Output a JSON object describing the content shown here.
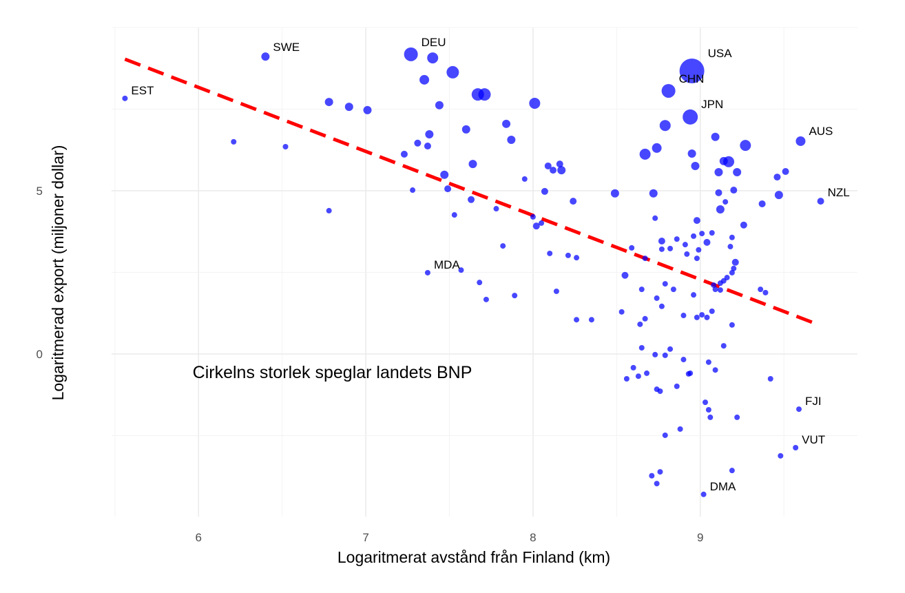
{
  "chart_data": {
    "type": "scatter",
    "title": "",
    "xlabel": "Logaritmerat avstånd från Finland (km)",
    "ylabel": "Logaritmerad export (miljoner dollar)",
    "xlim": [
      5.48,
      9.94
    ],
    "ylim": [
      -4.98,
      10.0
    ],
    "x_ticks": [
      6,
      7,
      8,
      9
    ],
    "y_ticks": [
      0,
      5
    ],
    "grid": true,
    "point_color": "#0000ff",
    "trend_color": "#ff0000",
    "annotation": {
      "text": "Cirkelns storlek speglar landets BNP",
      "x": 6.8,
      "y": -0.55
    },
    "trend_line": {
      "x": [
        5.56,
        9.69
      ],
      "y": [
        9.03,
        0.93
      ]
    },
    "points_format": [
      "x",
      "y",
      "gdp_size_index",
      "label"
    ],
    "points": [
      [
        5.56,
        7.83,
        4,
        "EST"
      ],
      [
        6.4,
        9.11,
        6,
        "SWE"
      ],
      [
        7.27,
        9.18,
        10,
        "DEU"
      ],
      [
        7.4,
        9.07,
        8,
        ""
      ],
      [
        7.52,
        8.63,
        9,
        ""
      ],
      [
        7.35,
        8.4,
        7,
        ""
      ],
      [
        7.67,
        7.95,
        9,
        ""
      ],
      [
        7.71,
        7.95,
        9,
        ""
      ],
      [
        7.44,
        7.62,
        6,
        ""
      ],
      [
        8.01,
        7.68,
        8,
        ""
      ],
      [
        8.95,
        8.67,
        18,
        "USA"
      ],
      [
        8.81,
        8.06,
        10,
        "CHN"
      ],
      [
        8.94,
        7.26,
        11,
        "JPN"
      ],
      [
        8.79,
        7.0,
        8,
        ""
      ],
      [
        6.78,
        7.72,
        6,
        ""
      ],
      [
        6.9,
        7.57,
        6,
        ""
      ],
      [
        7.01,
        7.47,
        6,
        ""
      ],
      [
        6.21,
        6.5,
        4,
        ""
      ],
      [
        6.52,
        6.35,
        4,
        ""
      ],
      [
        7.6,
        6.88,
        6,
        ""
      ],
      [
        7.84,
        7.05,
        6,
        ""
      ],
      [
        7.38,
        6.73,
        6,
        ""
      ],
      [
        7.31,
        6.46,
        5,
        ""
      ],
      [
        7.37,
        6.37,
        5,
        ""
      ],
      [
        7.23,
        6.12,
        5,
        ""
      ],
      [
        7.87,
        6.56,
        6,
        ""
      ],
      [
        9.6,
        6.52,
        7,
        "AUS"
      ],
      [
        9.27,
        6.39,
        8,
        ""
      ],
      [
        9.09,
        6.65,
        6,
        ""
      ],
      [
        8.74,
        6.31,
        7,
        ""
      ],
      [
        8.67,
        6.12,
        8,
        ""
      ],
      [
        8.95,
        6.14,
        6,
        ""
      ],
      [
        9.14,
        5.91,
        6,
        ""
      ],
      [
        9.17,
        5.89,
        8,
        ""
      ],
      [
        8.97,
        5.76,
        6,
        ""
      ],
      [
        7.64,
        5.82,
        6,
        ""
      ],
      [
        8.09,
        5.76,
        5,
        ""
      ],
      [
        8.16,
        5.82,
        5,
        ""
      ],
      [
        8.12,
        5.63,
        5,
        ""
      ],
      [
        8.17,
        5.63,
        6,
        ""
      ],
      [
        9.11,
        5.57,
        6,
        ""
      ],
      [
        9.22,
        5.57,
        6,
        ""
      ],
      [
        9.51,
        5.59,
        5,
        ""
      ],
      [
        9.46,
        5.42,
        5,
        ""
      ],
      [
        7.47,
        5.49,
        6,
        ""
      ],
      [
        7.95,
        5.36,
        4,
        ""
      ],
      [
        7.28,
        5.02,
        4,
        ""
      ],
      [
        7.49,
        5.06,
        5,
        ""
      ],
      [
        8.07,
        4.98,
        5,
        ""
      ],
      [
        8.49,
        4.92,
        6,
        ""
      ],
      [
        8.72,
        4.92,
        6,
        ""
      ],
      [
        9.11,
        4.94,
        5,
        ""
      ],
      [
        9.2,
        5.02,
        5,
        ""
      ],
      [
        9.47,
        4.87,
        6,
        ""
      ],
      [
        9.72,
        4.68,
        5,
        "NZL"
      ],
      [
        7.63,
        4.73,
        5,
        ""
      ],
      [
        8.24,
        4.68,
        5,
        ""
      ],
      [
        9.15,
        4.66,
        4,
        ""
      ],
      [
        7.78,
        4.45,
        4,
        ""
      ],
      [
        9.12,
        4.43,
        6,
        ""
      ],
      [
        9.37,
        4.6,
        5,
        ""
      ],
      [
        6.78,
        4.39,
        4,
        ""
      ],
      [
        7.53,
        4.26,
        4,
        ""
      ],
      [
        8.0,
        4.2,
        4,
        ""
      ],
      [
        8.73,
        4.16,
        4,
        ""
      ],
      [
        8.98,
        4.09,
        5,
        ""
      ],
      [
        8.05,
        4.01,
        4,
        ""
      ],
      [
        8.02,
        3.92,
        5,
        ""
      ],
      [
        9.26,
        3.95,
        5,
        ""
      ],
      [
        9.01,
        3.69,
        4,
        ""
      ],
      [
        9.07,
        3.71,
        4,
        ""
      ],
      [
        9.19,
        3.57,
        4,
        ""
      ],
      [
        8.86,
        3.52,
        4,
        ""
      ],
      [
        8.77,
        3.46,
        5,
        ""
      ],
      [
        8.96,
        3.61,
        4,
        ""
      ],
      [
        9.04,
        3.42,
        5,
        ""
      ],
      [
        8.91,
        3.35,
        4,
        ""
      ],
      [
        9.18,
        3.29,
        4,
        ""
      ],
      [
        8.59,
        3.25,
        4,
        ""
      ],
      [
        7.82,
        3.31,
        4,
        ""
      ],
      [
        8.77,
        3.21,
        4,
        ""
      ],
      [
        8.82,
        3.23,
        4,
        ""
      ],
      [
        8.99,
        3.19,
        4,
        ""
      ],
      [
        8.1,
        3.08,
        4,
        ""
      ],
      [
        8.92,
        3.06,
        4,
        ""
      ],
      [
        8.21,
        3.02,
        4,
        ""
      ],
      [
        8.26,
        2.95,
        4,
        ""
      ],
      [
        8.67,
        2.93,
        4,
        ""
      ],
      [
        8.98,
        2.93,
        4,
        ""
      ],
      [
        9.21,
        2.81,
        5,
        ""
      ],
      [
        9.2,
        2.62,
        4,
        ""
      ],
      [
        9.19,
        2.49,
        4,
        ""
      ],
      [
        7.37,
        2.49,
        4,
        "MDA"
      ],
      [
        7.57,
        2.57,
        4,
        ""
      ],
      [
        8.55,
        2.41,
        5,
        ""
      ],
      [
        9.16,
        2.34,
        4,
        ""
      ],
      [
        9.14,
        2.24,
        4,
        ""
      ],
      [
        9.12,
        2.17,
        4,
        ""
      ],
      [
        9.08,
        2.11,
        4,
        ""
      ],
      [
        8.79,
        2.15,
        4,
        ""
      ],
      [
        7.68,
        2.19,
        4,
        ""
      ],
      [
        8.84,
        1.98,
        4,
        ""
      ],
      [
        8.65,
        1.98,
        4,
        ""
      ],
      [
        9.09,
        1.98,
        4,
        ""
      ],
      [
        9.12,
        1.96,
        4,
        ""
      ],
      [
        9.36,
        1.98,
        4,
        ""
      ],
      [
        9.39,
        1.88,
        4,
        ""
      ],
      [
        8.14,
        1.92,
        4,
        ""
      ],
      [
        7.89,
        1.79,
        4,
        ""
      ],
      [
        8.96,
        1.81,
        4,
        ""
      ],
      [
        7.72,
        1.67,
        4,
        ""
      ],
      [
        8.74,
        1.71,
        4,
        ""
      ],
      [
        8.77,
        1.46,
        4,
        ""
      ],
      [
        8.53,
        1.29,
        4,
        ""
      ],
      [
        9.07,
        1.31,
        4,
        ""
      ],
      [
        8.9,
        1.18,
        4,
        ""
      ],
      [
        8.98,
        1.12,
        4,
        ""
      ],
      [
        9.01,
        1.2,
        4,
        ""
      ],
      [
        9.04,
        1.12,
        4,
        ""
      ],
      [
        8.67,
        1.08,
        4,
        ""
      ],
      [
        8.26,
        1.05,
        4,
        ""
      ],
      [
        8.35,
        1.05,
        4,
        ""
      ],
      [
        8.64,
        0.91,
        4,
        ""
      ],
      [
        9.19,
        0.89,
        4,
        ""
      ],
      [
        9.14,
        0.25,
        4,
        ""
      ],
      [
        8.65,
        0.19,
        4,
        ""
      ],
      [
        8.73,
        -0.02,
        4,
        ""
      ],
      [
        8.79,
        -0.04,
        4,
        ""
      ],
      [
        8.82,
        0.15,
        4,
        ""
      ],
      [
        8.9,
        -0.17,
        4,
        ""
      ],
      [
        9.05,
        -0.25,
        4,
        ""
      ],
      [
        8.6,
        -0.42,
        4,
        ""
      ],
      [
        9.09,
        -0.49,
        4,
        ""
      ],
      [
        8.68,
        -0.59,
        4,
        ""
      ],
      [
        8.93,
        -0.61,
        4,
        ""
      ],
      [
        8.94,
        -0.59,
        4,
        ""
      ],
      [
        8.63,
        -0.68,
        4,
        ""
      ],
      [
        8.56,
        -0.76,
        4,
        ""
      ],
      [
        9.42,
        -0.76,
        4,
        ""
      ],
      [
        8.74,
        -1.08,
        4,
        ""
      ],
      [
        8.76,
        -1.14,
        4,
        ""
      ],
      [
        8.86,
        -0.99,
        4,
        ""
      ],
      [
        9.03,
        -1.48,
        4,
        ""
      ],
      [
        9.05,
        -1.71,
        4,
        ""
      ],
      [
        9.06,
        -1.94,
        4,
        ""
      ],
      [
        9.22,
        -1.94,
        4,
        ""
      ],
      [
        9.59,
        -1.69,
        4,
        "FJI"
      ],
      [
        8.88,
        -2.3,
        4,
        ""
      ],
      [
        8.79,
        -2.49,
        4,
        ""
      ],
      [
        9.57,
        -2.87,
        4,
        "VUT"
      ],
      [
        9.48,
        -3.12,
        4,
        ""
      ],
      [
        9.19,
        -3.57,
        4,
        ""
      ],
      [
        8.76,
        -3.61,
        4,
        ""
      ],
      [
        8.71,
        -3.73,
        4,
        ""
      ],
      [
        8.74,
        -3.97,
        4,
        ""
      ],
      [
        9.02,
        -4.3,
        4,
        "DMA"
      ]
    ]
  }
}
